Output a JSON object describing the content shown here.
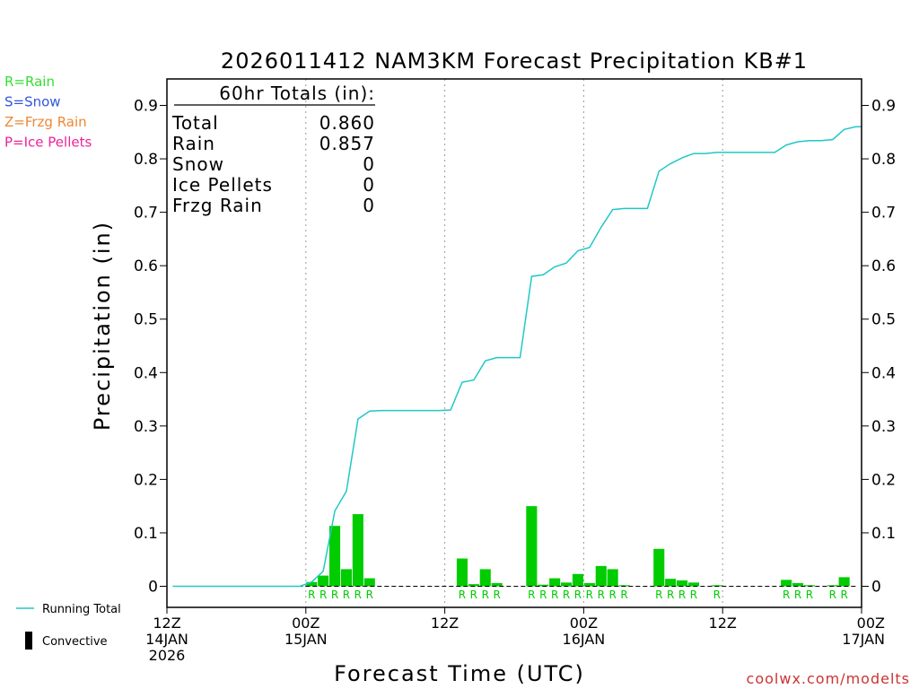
{
  "chart_data": {
    "type": "bar",
    "title": "2026011412 NAM3KM Forecast Precipitation KB#1",
    "xlabel": "Forecast Time (UTC)",
    "ylabel": "Precipitation (in)",
    "ylim": [
      0,
      0.95
    ],
    "xlim_hours": [
      0,
      60
    ],
    "y_ticks": [
      "0",
      "0.1",
      "0.2",
      "0.3",
      "0.4",
      "0.5",
      "0.6",
      "0.7",
      "0.8",
      "0.9"
    ],
    "x_ticks": [
      {
        "hour": 0,
        "lines": [
          "12Z",
          "14JAN",
          "2026"
        ]
      },
      {
        "hour": 12,
        "lines": [
          "00Z",
          "15JAN"
        ]
      },
      {
        "hour": 24,
        "lines": [
          "12Z"
        ]
      },
      {
        "hour": 36,
        "lines": [
          "00Z",
          "16JAN"
        ]
      },
      {
        "hour": 48,
        "lines": [
          "12Z"
        ]
      },
      {
        "hour": 60,
        "lines": [
          "00Z",
          "17JAN"
        ]
      }
    ],
    "precip_type_legend": [
      {
        "label": "R=Rain",
        "color": "#33dd33"
      },
      {
        "label": "S=Snow",
        "color": "#3355dd"
      },
      {
        "label": "Z=Frzg Rain",
        "color": "#ee8833"
      },
      {
        "label": "P=Ice Pellets",
        "color": "#ee2299"
      }
    ],
    "totals": {
      "heading": "60hr Totals (in):",
      "rows": [
        {
          "label": "Total",
          "value": "0.860"
        },
        {
          "label": "Rain",
          "value": "0.857"
        },
        {
          "label": "Snow",
          "value": "0"
        },
        {
          "label": "Ice Pellets",
          "value": "0"
        },
        {
          "label": "Frzg Rain",
          "value": "0"
        }
      ]
    },
    "series_legend": [
      {
        "label": "Running Total",
        "kind": "line",
        "color": "#22c7c7"
      },
      {
        "label": "Convective",
        "kind": "bar",
        "color": "#000000"
      }
    ],
    "bar_color": "#00cc00",
    "line_color": "#22c7c7",
    "bars": [
      {
        "hour": 0,
        "value": 0
      },
      {
        "hour": 1,
        "value": 0
      },
      {
        "hour": 2,
        "value": 0
      },
      {
        "hour": 3,
        "value": 0
      },
      {
        "hour": 4,
        "value": 0
      },
      {
        "hour": 5,
        "value": 0
      },
      {
        "hour": 6,
        "value": 0
      },
      {
        "hour": 7,
        "value": 0
      },
      {
        "hour": 8,
        "value": 0
      },
      {
        "hour": 9,
        "value": 0
      },
      {
        "hour": 10,
        "value": 0
      },
      {
        "hour": 11,
        "value": 0
      },
      {
        "hour": 12,
        "value": 0.008,
        "ptype": "R"
      },
      {
        "hour": 13,
        "value": 0.02,
        "ptype": "R"
      },
      {
        "hour": 14,
        "value": 0.113,
        "ptype": "R"
      },
      {
        "hour": 15,
        "value": 0.032,
        "ptype": "R"
      },
      {
        "hour": 16,
        "value": 0.135,
        "ptype": "R"
      },
      {
        "hour": 17,
        "value": 0.015,
        "ptype": "R"
      },
      {
        "hour": 18,
        "value": 0
      },
      {
        "hour": 19,
        "value": 0
      },
      {
        "hour": 20,
        "value": 0
      },
      {
        "hour": 21,
        "value": 0
      },
      {
        "hour": 22,
        "value": 0
      },
      {
        "hour": 23,
        "value": 0
      },
      {
        "hour": 24,
        "value": 0
      },
      {
        "hour": 25,
        "value": 0.052,
        "ptype": "R"
      },
      {
        "hour": 26,
        "value": 0.004,
        "ptype": "R"
      },
      {
        "hour": 27,
        "value": 0.032,
        "ptype": "R"
      },
      {
        "hour": 28,
        "value": 0.006,
        "ptype": "R"
      },
      {
        "hour": 29,
        "value": 0
      },
      {
        "hour": 30,
        "value": 0
      },
      {
        "hour": 31,
        "value": 0.15,
        "ptype": "R"
      },
      {
        "hour": 32,
        "value": 0.003,
        "ptype": "R"
      },
      {
        "hour": 33,
        "value": 0.015,
        "ptype": "R"
      },
      {
        "hour": 34,
        "value": 0.007,
        "ptype": "R"
      },
      {
        "hour": 35,
        "value": 0.023,
        "ptype": "R"
      },
      {
        "hour": 36,
        "value": 0.006,
        "ptype": "R"
      },
      {
        "hour": 37,
        "value": 0.038,
        "ptype": "R"
      },
      {
        "hour": 38,
        "value": 0.032,
        "ptype": "R"
      },
      {
        "hour": 39,
        "value": 0.001,
        "ptype": "R"
      },
      {
        "hour": 40,
        "value": 0
      },
      {
        "hour": 41,
        "value": 0
      },
      {
        "hour": 42,
        "value": 0.07,
        "ptype": "R"
      },
      {
        "hour": 43,
        "value": 0.014,
        "ptype": "R"
      },
      {
        "hour": 44,
        "value": 0.011,
        "ptype": "R"
      },
      {
        "hour": 45,
        "value": 0.007,
        "ptype": "R"
      },
      {
        "hour": 46,
        "value": 0
      },
      {
        "hour": 47,
        "value": 0.002,
        "ptype": "R"
      },
      {
        "hour": 48,
        "value": 0
      },
      {
        "hour": 49,
        "value": 0
      },
      {
        "hour": 50,
        "value": 0
      },
      {
        "hour": 51,
        "value": 0
      },
      {
        "hour": 52,
        "value": 0
      },
      {
        "hour": 53,
        "value": 0.012,
        "ptype": "R"
      },
      {
        "hour": 54,
        "value": 0.006,
        "ptype": "R"
      },
      {
        "hour": 55,
        "value": 0.002,
        "ptype": "R"
      },
      {
        "hour": 56,
        "value": 0
      },
      {
        "hour": 57,
        "value": 0.002,
        "ptype": "R"
      },
      {
        "hour": 58,
        "value": 0.017,
        "ptype": "R"
      },
      {
        "hour": 59,
        "value": 0
      }
    ],
    "running_total": [
      {
        "hour": 0,
        "value": 0
      },
      {
        "hour": 11,
        "value": 0
      },
      {
        "hour": 12,
        "value": 0.008
      },
      {
        "hour": 13,
        "value": 0.028
      },
      {
        "hour": 14,
        "value": 0.141
      },
      {
        "hour": 15,
        "value": 0.178
      },
      {
        "hour": 16,
        "value": 0.313
      },
      {
        "hour": 17,
        "value": 0.328
      },
      {
        "hour": 18,
        "value": 0.329
      },
      {
        "hour": 23,
        "value": 0.329
      },
      {
        "hour": 24,
        "value": 0.33
      },
      {
        "hour": 25,
        "value": 0.382
      },
      {
        "hour": 26,
        "value": 0.386
      },
      {
        "hour": 27,
        "value": 0.422
      },
      {
        "hour": 28,
        "value": 0.428
      },
      {
        "hour": 29,
        "value": 0.428
      },
      {
        "hour": 30,
        "value": 0.428
      },
      {
        "hour": 31,
        "value": 0.58
      },
      {
        "hour": 32,
        "value": 0.583
      },
      {
        "hour": 33,
        "value": 0.598
      },
      {
        "hour": 34,
        "value": 0.605
      },
      {
        "hour": 35,
        "value": 0.628
      },
      {
        "hour": 36,
        "value": 0.634
      },
      {
        "hour": 37,
        "value": 0.672
      },
      {
        "hour": 38,
        "value": 0.705
      },
      {
        "hour": 39,
        "value": 0.707
      },
      {
        "hour": 40,
        "value": 0.707
      },
      {
        "hour": 41,
        "value": 0.707
      },
      {
        "hour": 42,
        "value": 0.777
      },
      {
        "hour": 43,
        "value": 0.791
      },
      {
        "hour": 44,
        "value": 0.802
      },
      {
        "hour": 45,
        "value": 0.81
      },
      {
        "hour": 46,
        "value": 0.81
      },
      {
        "hour": 47,
        "value": 0.812
      },
      {
        "hour": 48,
        "value": 0.812
      },
      {
        "hour": 52,
        "value": 0.812
      },
      {
        "hour": 53,
        "value": 0.826
      },
      {
        "hour": 54,
        "value": 0.832
      },
      {
        "hour": 55,
        "value": 0.834
      },
      {
        "hour": 56,
        "value": 0.834
      },
      {
        "hour": 57,
        "value": 0.836
      },
      {
        "hour": 58,
        "value": 0.855
      },
      {
        "hour": 59,
        "value": 0.86
      },
      {
        "hour": 60,
        "value": 0.86
      }
    ],
    "watermark": "coolwx.com/modelts"
  }
}
